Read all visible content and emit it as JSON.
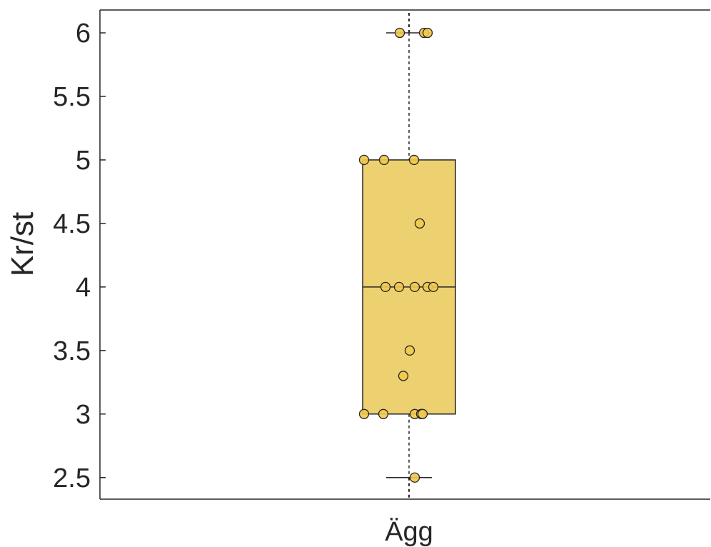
{
  "chart_data": {
    "type": "box",
    "categories": [
      "Ägg"
    ],
    "xlabel": "",
    "ylabel": "Kr/st",
    "ylim": [
      2.33,
      6.18
    ],
    "yticks": [
      2.5,
      3,
      3.5,
      4,
      4.5,
      5,
      5.5,
      6
    ],
    "ytick_labels": [
      "2.5",
      "3",
      "3.5",
      "4",
      "4.5",
      "5",
      "5.5",
      "6"
    ],
    "grid": false,
    "box": {
      "category": "Ägg",
      "whisker_low": 2.5,
      "q1": 3.0,
      "median": 4.0,
      "q3": 5.0,
      "whisker_high": 6.0
    },
    "points": [
      {
        "x": "Ägg",
        "y": 6.0
      },
      {
        "x": "Ägg",
        "y": 6.0
      },
      {
        "x": "Ägg",
        "y": 6.0
      },
      {
        "x": "Ägg",
        "y": 5.0
      },
      {
        "x": "Ägg",
        "y": 5.0
      },
      {
        "x": "Ägg",
        "y": 5.0
      },
      {
        "x": "Ägg",
        "y": 4.5
      },
      {
        "x": "Ägg",
        "y": 4.0
      },
      {
        "x": "Ägg",
        "y": 4.0
      },
      {
        "x": "Ägg",
        "y": 4.0
      },
      {
        "x": "Ägg",
        "y": 4.0
      },
      {
        "x": "Ägg",
        "y": 4.0
      },
      {
        "x": "Ägg",
        "y": 3.5
      },
      {
        "x": "Ägg",
        "y": 3.3
      },
      {
        "x": "Ägg",
        "y": 3.0
      },
      {
        "x": "Ägg",
        "y": 3.0
      },
      {
        "x": "Ägg",
        "y": 3.0
      },
      {
        "x": "Ägg",
        "y": 3.0
      },
      {
        "x": "Ägg",
        "y": 3.0
      },
      {
        "x": "Ägg",
        "y": 2.5
      }
    ],
    "colors": {
      "box_fill": "#EDD170",
      "point_fill": "#F2C94C",
      "stroke": "#262626",
      "axis": "#262626"
    }
  }
}
